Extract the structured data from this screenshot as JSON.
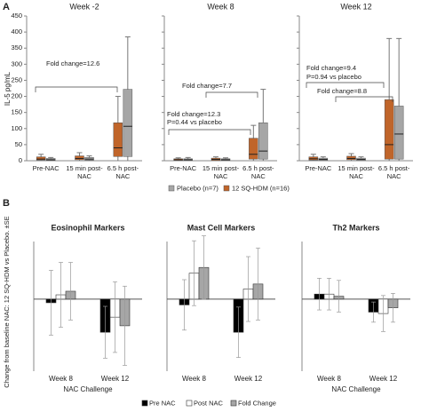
{
  "panel_labels": [
    "A",
    "B"
  ],
  "chart_data": [
    {
      "type": "box",
      "ylabel": "IL-5 pg/mL",
      "ylim": [
        0,
        450
      ],
      "yticks": [
        0,
        50,
        100,
        150,
        200,
        250,
        300,
        350,
        400,
        450
      ],
      "categories": [
        "Pre-NAC",
        "15 min post-NAC",
        "6.5 h post-NAC"
      ],
      "series": [
        {
          "name": "Placebo (n=7)",
          "color": "#a6a6a6"
        },
        {
          "name": "12 SQ-HDM (n=16)",
          "color": "#c0652a"
        }
      ],
      "subplots": [
        {
          "title": "Week -2",
          "annotations": [
            "Fold change=12.6"
          ],
          "values": [
            [
              [
                0,
                1,
                3,
                7,
                10
              ],
              [
                0,
                2,
                5,
                10,
                15
              ],
              [
                0,
                13,
                107,
                222,
                385
              ]
            ],
            [
              [
                0,
                2,
                5,
                12,
                20
              ],
              [
                0,
                3,
                7,
                15,
                25
              ],
              [
                0,
                13,
                40,
                118,
                200
              ]
            ]
          ]
        },
        {
          "title": "Week 8",
          "annotations": [
            "Fold change=7.7",
            "Fold change=12.3",
            "P=0.44 vs placebo"
          ],
          "values": [
            [
              [
                0,
                1,
                3,
                6,
                10
              ],
              [
                0,
                1,
                3,
                6,
                9
              ],
              [
                0,
                5,
                30,
                118,
                222
              ]
            ],
            [
              [
                0,
                1,
                3,
                6,
                9
              ],
              [
                0,
                1,
                4,
                8,
                12
              ],
              [
                0,
                5,
                20,
                70,
                110
              ]
            ]
          ]
        },
        {
          "title": "Week 12",
          "annotations": [
            "Fold change=9.4",
            "P=0.94 vs placebo",
            "Fold change=8.8"
          ],
          "values": [
            [
              [
                0,
                1,
                4,
                8,
                12
              ],
              [
                0,
                1,
                4,
                8,
                12
              ],
              [
                0,
                5,
                83,
                170,
                380
              ]
            ],
            [
              [
                0,
                2,
                6,
                12,
                20
              ],
              [
                0,
                3,
                7,
                14,
                22
              ],
              [
                0,
                5,
                50,
                190,
                380
              ]
            ]
          ]
        }
      ]
    },
    {
      "type": "bar",
      "ylabel": "Change from baseline NAC: 12 SQ-HDM vs Placebo. ±SE",
      "ylim": [
        -10,
        8
      ],
      "categories": [
        "Week 8",
        "Week 12"
      ],
      "series": [
        {
          "name": "Pre NAC",
          "color": "#000000"
        },
        {
          "name": "Post NAC",
          "color": "#ffffff"
        },
        {
          "name": "Fold Change",
          "color": "#a6a6a6"
        }
      ],
      "subplots": [
        {
          "title": "Eosinophil Markers",
          "xlabel": "NAC Challenge",
          "values": [
            [
              -0.5,
              -4.6
            ],
            [
              0.6,
              -2.5
            ],
            [
              1.1,
              -3.7
            ]
          ],
          "errors": [
            [
              4.5,
              3.6
            ],
            [
              4.5,
              4.9
            ],
            [
              4,
              5.5
            ]
          ]
        },
        {
          "title": "Mast Cell Markers",
          "values": [
            [
              -0.8,
              -4.6
            ],
            [
              3.6,
              1.4
            ],
            [
              4.4,
              2.1
            ]
          ],
          "errors": [
            [
              3.5,
              3.5
            ],
            [
              4.5,
              4.5
            ],
            [
              4.4,
              5
            ]
          ]
        },
        {
          "title": "Th2 Markers",
          "xlabel": "NAC Challenge",
          "values": [
            [
              0.7,
              -1.8
            ],
            [
              0.7,
              -2
            ],
            [
              0.4,
              -1.2
            ]
          ],
          "errors": [
            [
              2.2,
              1.4
            ],
            [
              2.2,
              2.5
            ],
            [
              2.2,
              2
            ]
          ]
        }
      ]
    }
  ]
}
